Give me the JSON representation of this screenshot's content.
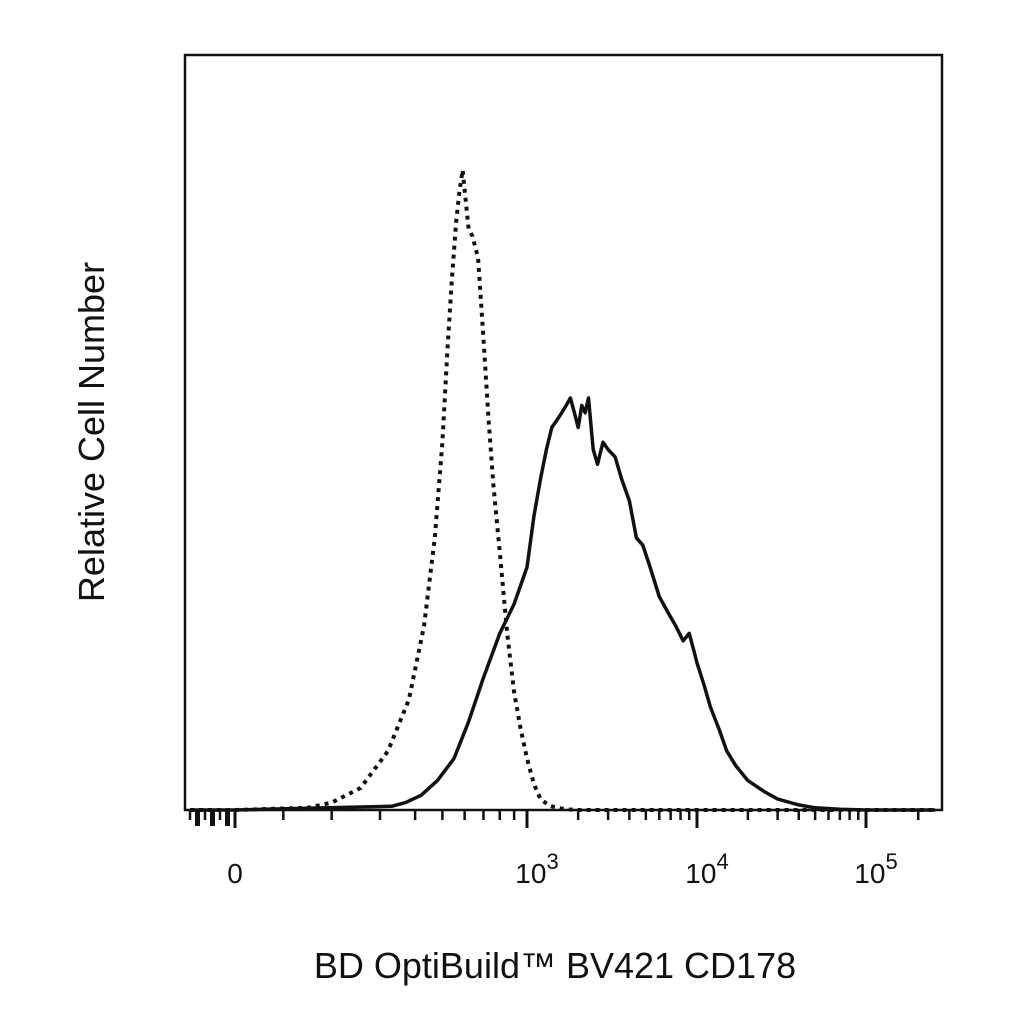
{
  "chart_data": {
    "type": "line",
    "title": "",
    "xlabel": "BD OptiBuild™ BV421 CD178",
    "ylabel": "Relative Cell Number",
    "x_scale": "biexponential",
    "xlim": [
      -300,
      250000
    ],
    "ylim": [
      0,
      100
    ],
    "grid": false,
    "legend": "none",
    "x_tick_labels": [
      {
        "value": 0,
        "base": "0",
        "exp": ""
      },
      {
        "value": 1000,
        "base": "10",
        "exp": "3"
      },
      {
        "value": 10000,
        "base": "10",
        "exp": "4"
      },
      {
        "value": 100000,
        "base": "10",
        "exp": "5"
      }
    ],
    "series": [
      {
        "style": "dotted",
        "color": "#111111",
        "x": [
          -300,
          0,
          150,
          200,
          260,
          320,
          380,
          430,
          470,
          500,
          520,
          540,
          560,
          575,
          590,
          605,
          620,
          640,
          670,
          700,
          730,
          760,
          800,
          850,
          900,
          950,
          1000,
          1100,
          1200,
          1350,
          1500,
          1700,
          2000,
          2500,
          250000
        ],
        "y": [
          0,
          0,
          0.3,
          1,
          3,
          8,
          15,
          25,
          37,
          50,
          62,
          72,
          80,
          84,
          87,
          83,
          79,
          78,
          75,
          64,
          53,
          44,
          35,
          24,
          16,
          11,
          7,
          3.5,
          1.5,
          0.6,
          0.3,
          0.1,
          0,
          0,
          0
        ]
      },
      {
        "style": "solid",
        "color": "#111111",
        "x": [
          -300,
          0,
          330,
          370,
          420,
          480,
          550,
          620,
          700,
          800,
          900,
          1000,
          1100,
          1200,
          1300,
          1400,
          1500,
          1600,
          1700,
          1800,
          1900,
          2000,
          2100,
          2200,
          2300,
          2450,
          2600,
          2800,
          3000,
          3300,
          3600,
          4000,
          4400,
          4800,
          5300,
          6000,
          6700,
          7500,
          8300,
          9000,
          9500,
          10000,
          11000,
          12000,
          13500,
          15000,
          17000,
          20000,
          25000,
          30000,
          40000,
          50000,
          70000,
          100000,
          250000
        ],
        "y": [
          0,
          0,
          0.5,
          1,
          2,
          4,
          7,
          12,
          18,
          24,
          28,
          33,
          40,
          45,
          49,
          52,
          53,
          54,
          55,
          56,
          54,
          52,
          55,
          54,
          56,
          49,
          47,
          50,
          49,
          48,
          45,
          42,
          37,
          36,
          33,
          29,
          27,
          25,
          23,
          24,
          22,
          20,
          17,
          14,
          11,
          8,
          6,
          4,
          2.5,
          1.5,
          0.7,
          0.3,
          0.1,
          0,
          0
        ]
      }
    ]
  }
}
